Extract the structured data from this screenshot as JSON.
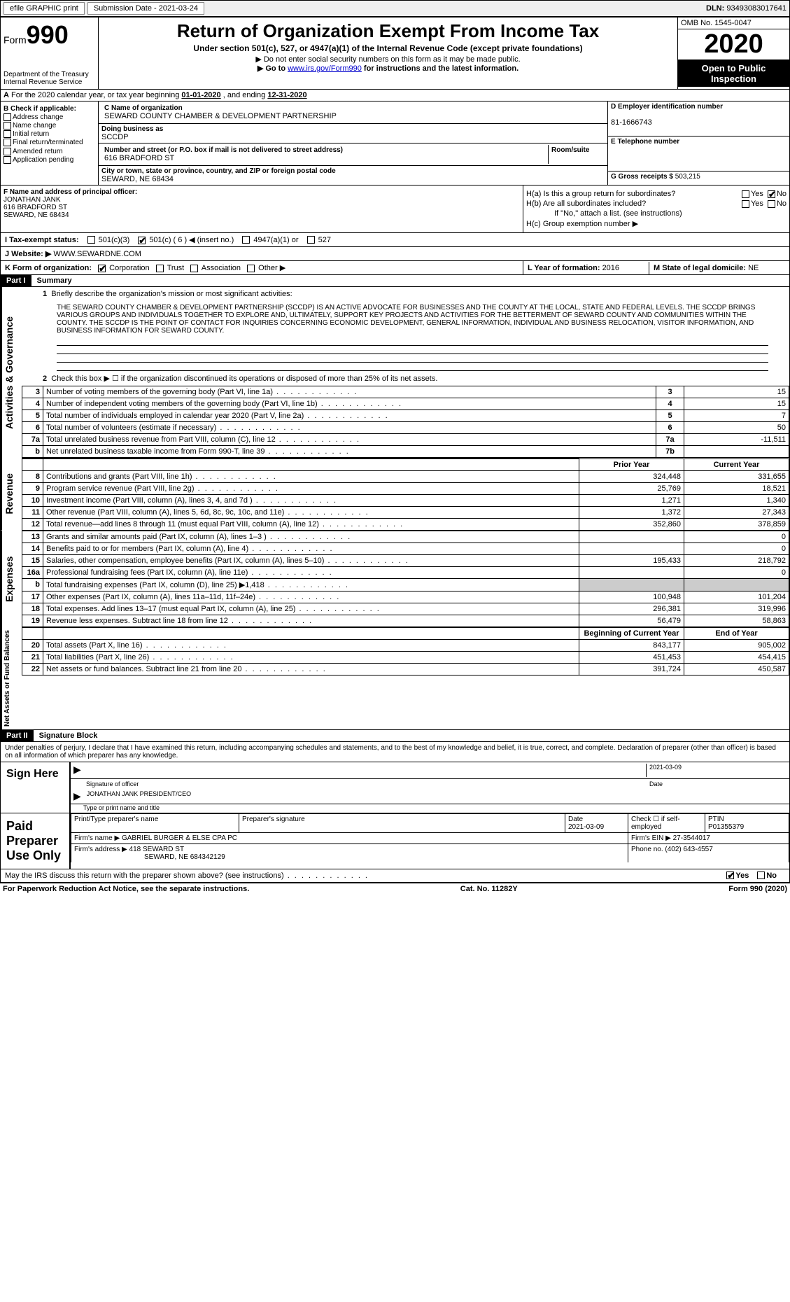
{
  "topBar": {
    "efile": "efile GRAPHIC print",
    "submissionLabel": "Submission Date - ",
    "submissionDate": "2021-03-24",
    "dlnLabel": "DLN: ",
    "dln": "93493083017641"
  },
  "header": {
    "formWord": "Form",
    "formNum": "990",
    "dept": "Department of the Treasury\nInternal Revenue Service",
    "title": "Return of Organization Exempt From Income Tax",
    "subtitle": "Under section 501(c), 527, or 4947(a)(1) of the Internal Revenue Code (except private foundations)",
    "note1": "▶ Do not enter social security numbers on this form as it may be made public.",
    "note2": "▶ Go to ",
    "note2Link": "www.irs.gov/Form990",
    "note2After": " for instructions and the latest information.",
    "omb": "OMB No. 1545-0047",
    "year": "2020",
    "inspect": "Open to Public Inspection"
  },
  "rowA": {
    "prefix": "A",
    "text": "For the 2020 calendar year, or tax year beginning ",
    "begin": "01-01-2020",
    "mid": "  , and ending ",
    "end": "12-31-2020"
  },
  "boxB": {
    "title": "B Check if applicable:",
    "items": [
      "Address change",
      "Name change",
      "Initial return",
      "Final return/terminated",
      "Amended return",
      "Application pending"
    ]
  },
  "boxC": {
    "nameLabel": "C Name of organization",
    "name": "SEWARD COUNTY CHAMBER & DEVELOPMENT PARTNERSHIP",
    "dbaLabel": "Doing business as",
    "dba": "SCCDP",
    "streetLabel": "Number and street (or P.O. box if mail is not delivered to street address)",
    "street": "616 BRADFORD ST",
    "roomLabel": "Room/suite",
    "cityLabel": "City or town, state or province, country, and ZIP or foreign postal code",
    "city": "SEWARD, NE  68434"
  },
  "boxD": {
    "label": "D Employer identification number",
    "value": "81-1666743"
  },
  "boxE": {
    "label": "E Telephone number",
    "value": ""
  },
  "boxG": {
    "label": "G Gross receipts $ ",
    "value": "503,215"
  },
  "boxF": {
    "label": "F  Name and address of principal officer:",
    "name": "JONATHAN JANK",
    "street": "616 BRADFORD ST",
    "city": "SEWARD, NE  68434"
  },
  "boxH": {
    "ha": "H(a)  Is this a group return for subordinates?",
    "hb": "H(b)  Are all subordinates included?",
    "hbNote": "If \"No,\" attach a list. (see instructions)",
    "hc": "H(c)  Group exemption number ▶",
    "yes": "Yes",
    "no": "No"
  },
  "rowI": {
    "label": "I  Tax-exempt status:",
    "opt1": "501(c)(3)",
    "opt2": "501(c) ( 6 ) ◀ (insert no.)",
    "opt3": "4947(a)(1) or",
    "opt4": "527"
  },
  "rowJ": {
    "label": "J  Website: ▶",
    "value": " WWW.SEWARDNE.COM"
  },
  "rowK": {
    "label": "K Form of organization:",
    "opts": [
      "Corporation",
      "Trust",
      "Association",
      "Other ▶"
    ],
    "checked": 0
  },
  "rowL": {
    "label": "L Year of formation: ",
    "value": "2016"
  },
  "rowM": {
    "label": "M State of legal domicile: ",
    "value": "NE"
  },
  "partI": {
    "hdr": "Part I",
    "title": "Summary",
    "side1": "Activities & Governance",
    "side2": "Revenue",
    "side3": "Expenses",
    "side4": "Net Assets or Fund Balances",
    "line1Label": "Briefly describe the organization's mission or most significant activities:",
    "mission": "THE SEWARD COUNTY CHAMBER & DEVELOPMENT PARTNERSHIP (SCCDP) IS AN ACTIVE ADVOCATE FOR BUSINESSES AND THE COUNTY AT THE LOCAL, STATE AND FEDERAL LEVELS. THE SCCDP BRINGS VARIOUS GROUPS AND INDIVIDUALS TOGETHER TO EXPLORE AND, ULTIMATELY, SUPPORT KEY PROJECTS AND ACTIVITIES FOR THE BETTERMENT OF SEWARD COUNTY AND COMMUNITIES WITHIN THE COUNTY. THE SCCDP IS THE POINT OF CONTACT FOR INQUIRIES CONCERNING ECONOMIC DEVELOPMENT, GENERAL INFORMATION, INDIVIDUAL AND BUSINESS RELOCATION, VISITOR INFORMATION, AND BUSINESS INFORMATION FOR SEWARD COUNTY.",
    "line2": "Check this box ▶ ☐ if the organization discontinued its operations or disposed of more than 25% of its net assets.",
    "govRows": [
      {
        "n": "3",
        "t": "Number of voting members of the governing body (Part VI, line 1a)",
        "c": "3",
        "v": "15"
      },
      {
        "n": "4",
        "t": "Number of independent voting members of the governing body (Part VI, line 1b)",
        "c": "4",
        "v": "15"
      },
      {
        "n": "5",
        "t": "Total number of individuals employed in calendar year 2020 (Part V, line 2a)",
        "c": "5",
        "v": "7"
      },
      {
        "n": "6",
        "t": "Total number of volunteers (estimate if necessary)",
        "c": "6",
        "v": "50"
      },
      {
        "n": "7a",
        "t": "Total unrelated business revenue from Part VIII, column (C), line 12",
        "c": "7a",
        "v": "-11,511"
      },
      {
        "n": "b",
        "t": "Net unrelated business taxable income from Form 990-T, line 39",
        "c": "7b",
        "v": ""
      }
    ],
    "colPrior": "Prior Year",
    "colCurrent": "Current Year",
    "revRows": [
      {
        "n": "8",
        "t": "Contributions and grants (Part VIII, line 1h)",
        "p": "324,448",
        "c": "331,655"
      },
      {
        "n": "9",
        "t": "Program service revenue (Part VIII, line 2g)",
        "p": "25,769",
        "c": "18,521"
      },
      {
        "n": "10",
        "t": "Investment income (Part VIII, column (A), lines 3, 4, and 7d )",
        "p": "1,271",
        "c": "1,340"
      },
      {
        "n": "11",
        "t": "Other revenue (Part VIII, column (A), lines 5, 6d, 8c, 9c, 10c, and 11e)",
        "p": "1,372",
        "c": "27,343"
      },
      {
        "n": "12",
        "t": "Total revenue—add lines 8 through 11 (must equal Part VIII, column (A), line 12)",
        "p": "352,860",
        "c": "378,859"
      }
    ],
    "expRows": [
      {
        "n": "13",
        "t": "Grants and similar amounts paid (Part IX, column (A), lines 1–3 )",
        "p": "",
        "c": "0"
      },
      {
        "n": "14",
        "t": "Benefits paid to or for members (Part IX, column (A), line 4)",
        "p": "",
        "c": "0"
      },
      {
        "n": "15",
        "t": "Salaries, other compensation, employee benefits (Part IX, column (A), lines 5–10)",
        "p": "195,433",
        "c": "218,792"
      },
      {
        "n": "16a",
        "t": "Professional fundraising fees (Part IX, column (A), line 11e)",
        "p": "",
        "c": "0"
      },
      {
        "n": "b",
        "t": "Total fundraising expenses (Part IX, column (D), line 25) ▶1,418",
        "p": "shade",
        "c": "shade"
      },
      {
        "n": "17",
        "t": "Other expenses (Part IX, column (A), lines 11a–11d, 11f–24e)",
        "p": "100,948",
        "c": "101,204"
      },
      {
        "n": "18",
        "t": "Total expenses. Add lines 13–17 (must equal Part IX, column (A), line 25)",
        "p": "296,381",
        "c": "319,996"
      },
      {
        "n": "19",
        "t": "Revenue less expenses. Subtract line 18 from line 12",
        "p": "56,479",
        "c": "58,863"
      }
    ],
    "colBegin": "Beginning of Current Year",
    "colEnd": "End of Year",
    "netRows": [
      {
        "n": "20",
        "t": "Total assets (Part X, line 16)",
        "p": "843,177",
        "c": "905,002"
      },
      {
        "n": "21",
        "t": "Total liabilities (Part X, line 26)",
        "p": "451,453",
        "c": "454,415"
      },
      {
        "n": "22",
        "t": "Net assets or fund balances. Subtract line 21 from line 20",
        "p": "391,724",
        "c": "450,587"
      }
    ]
  },
  "partII": {
    "hdr": "Part II",
    "title": "Signature Block",
    "perjury": "Under penalties of perjury, I declare that I have examined this return, including accompanying schedules and statements, and to the best of my knowledge and belief, it is true, correct, and complete. Declaration of preparer (other than officer) is based on all information of which preparer has any knowledge.",
    "signHere": "Sign Here",
    "sigOfficer": "Signature of officer",
    "sigDate": "2021-03-09",
    "dateLabel": "Date",
    "officerName": "JONATHAN JANK PRESIDENT/CEO",
    "typeLabel": "Type or print name and title",
    "paidPrep": "Paid Preparer Use Only",
    "prepNameLabel": "Print/Type preparer's name",
    "prepSigLabel": "Preparer's signature",
    "prepDateLabel": "Date",
    "prepDate": "2021-03-09",
    "checkIfLabel": "Check ☐ if self-employed",
    "ptinLabel": "PTIN",
    "ptin": "P01355379",
    "firmNameLabel": "Firm's name      ▶ ",
    "firmName": "GABRIEL BURGER & ELSE CPA PC",
    "firmEinLabel": "Firm's EIN ▶ ",
    "firmEin": "27-3544017",
    "firmAddrLabel": "Firm's address ▶ ",
    "firmAddr": "418 SEWARD ST",
    "firmCity": "SEWARD, NE  684342129",
    "firmPhoneLabel": "Phone no. ",
    "firmPhone": "(402) 643-4557",
    "discuss": "May the IRS discuss this return with the preparer shown above? (see instructions)",
    "yes": "Yes",
    "no": "No"
  },
  "footer": {
    "left": "For Paperwork Reduction Act Notice, see the separate instructions.",
    "mid": "Cat. No. 11282Y",
    "right": "Form 990 (2020)"
  }
}
